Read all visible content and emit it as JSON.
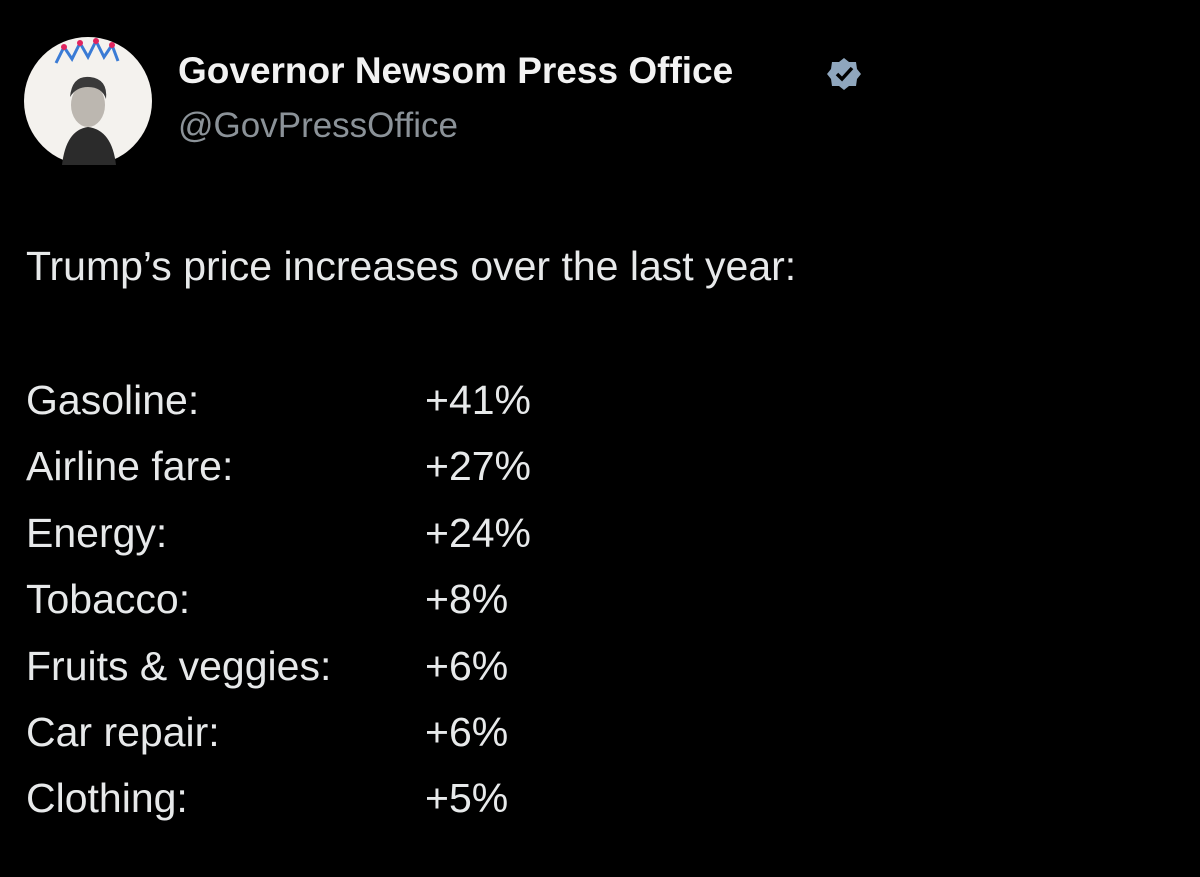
{
  "header": {
    "name": "Governor Newsom Press Office",
    "handle": "@GovPressOffice"
  },
  "post": {
    "text": "Trump’s price increases over the last year:",
    "items": [
      {
        "label": "Gasoline:",
        "value": "+41%"
      },
      {
        "label": "Airline fare:",
        "value": "+27%"
      },
      {
        "label": "Energy:",
        "value": "+24%"
      },
      {
        "label": "Tobacco:",
        "value": "+8%"
      },
      {
        "label": "Fruits & veggies:",
        "value": "+6%"
      },
      {
        "label": "Car repair:",
        "value": "+6%"
      },
      {
        "label": "Clothing:",
        "value": "+5%"
      }
    ]
  }
}
